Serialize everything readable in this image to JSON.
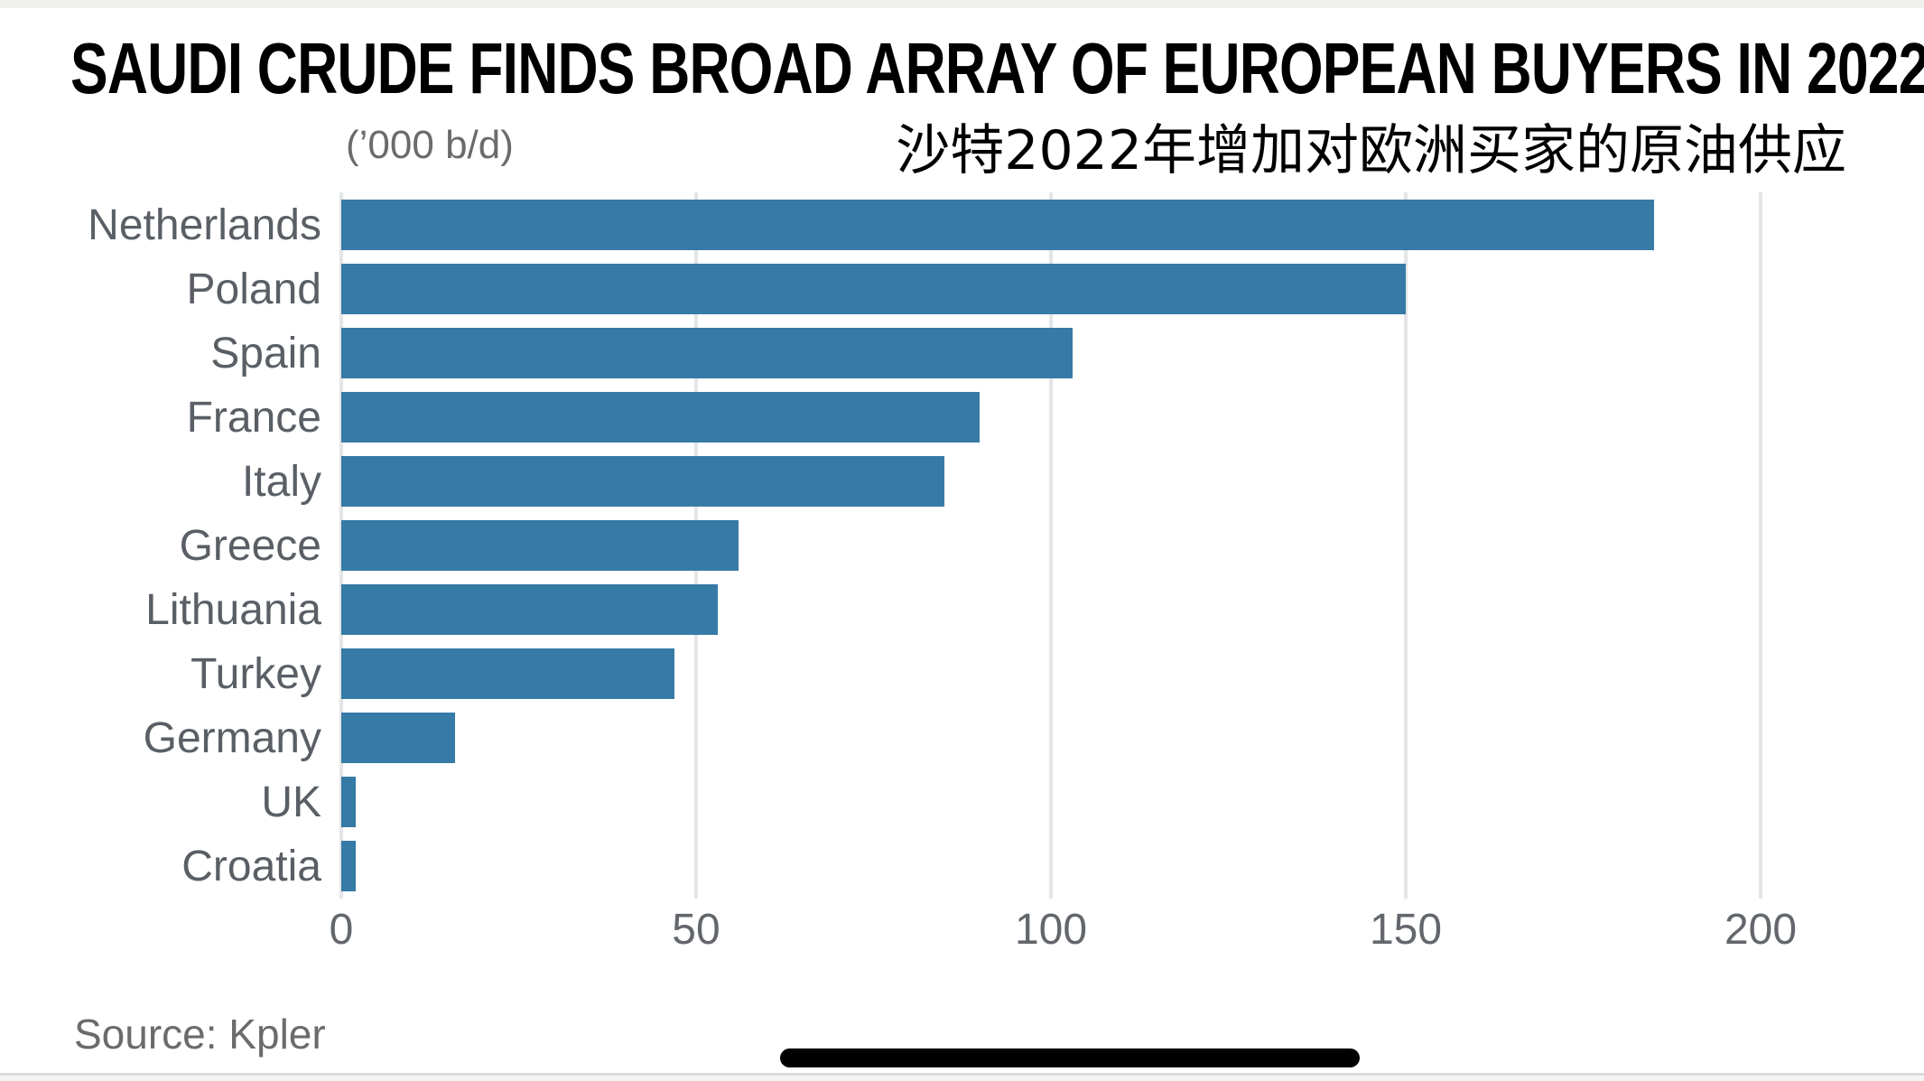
{
  "title": "SAUDI CRUDE FINDS BROAD ARRAY OF EUROPEAN BUYERS IN 2022",
  "subtitle_cn": "沙特2022年增加对欧洲买家的原油供应",
  "units_label": "(’000 b/d)",
  "source": "Source: Kpler",
  "colors": {
    "bar": "#367aa6",
    "category_label": "#5a5f66",
    "tick_label": "#63676c",
    "gridline": "#e4e5e6",
    "title": "#000000"
  },
  "chart_data": {
    "type": "bar",
    "orientation": "horizontal",
    "title": "SAUDI CRUDE FINDS BROAD ARRAY OF EUROPEAN BUYERS IN 2022",
    "subtitle": "沙特2022年增加对欧洲买家的原油供应",
    "xlabel": "(’000 b/d)",
    "ylabel": "",
    "categories": [
      "Netherlands",
      "Poland",
      "Spain",
      "France",
      "Italy",
      "Greece",
      "Lithuania",
      "Turkey",
      "Germany",
      "UK",
      "Croatia"
    ],
    "values": [
      185,
      150,
      103,
      90,
      85,
      56,
      53,
      47,
      16,
      2,
      2
    ],
    "x_ticks": [
      0,
      50,
      100,
      150,
      200
    ],
    "xlim": [
      0,
      219
    ],
    "grid": true,
    "legend": false,
    "source": "Source: Kpler"
  }
}
